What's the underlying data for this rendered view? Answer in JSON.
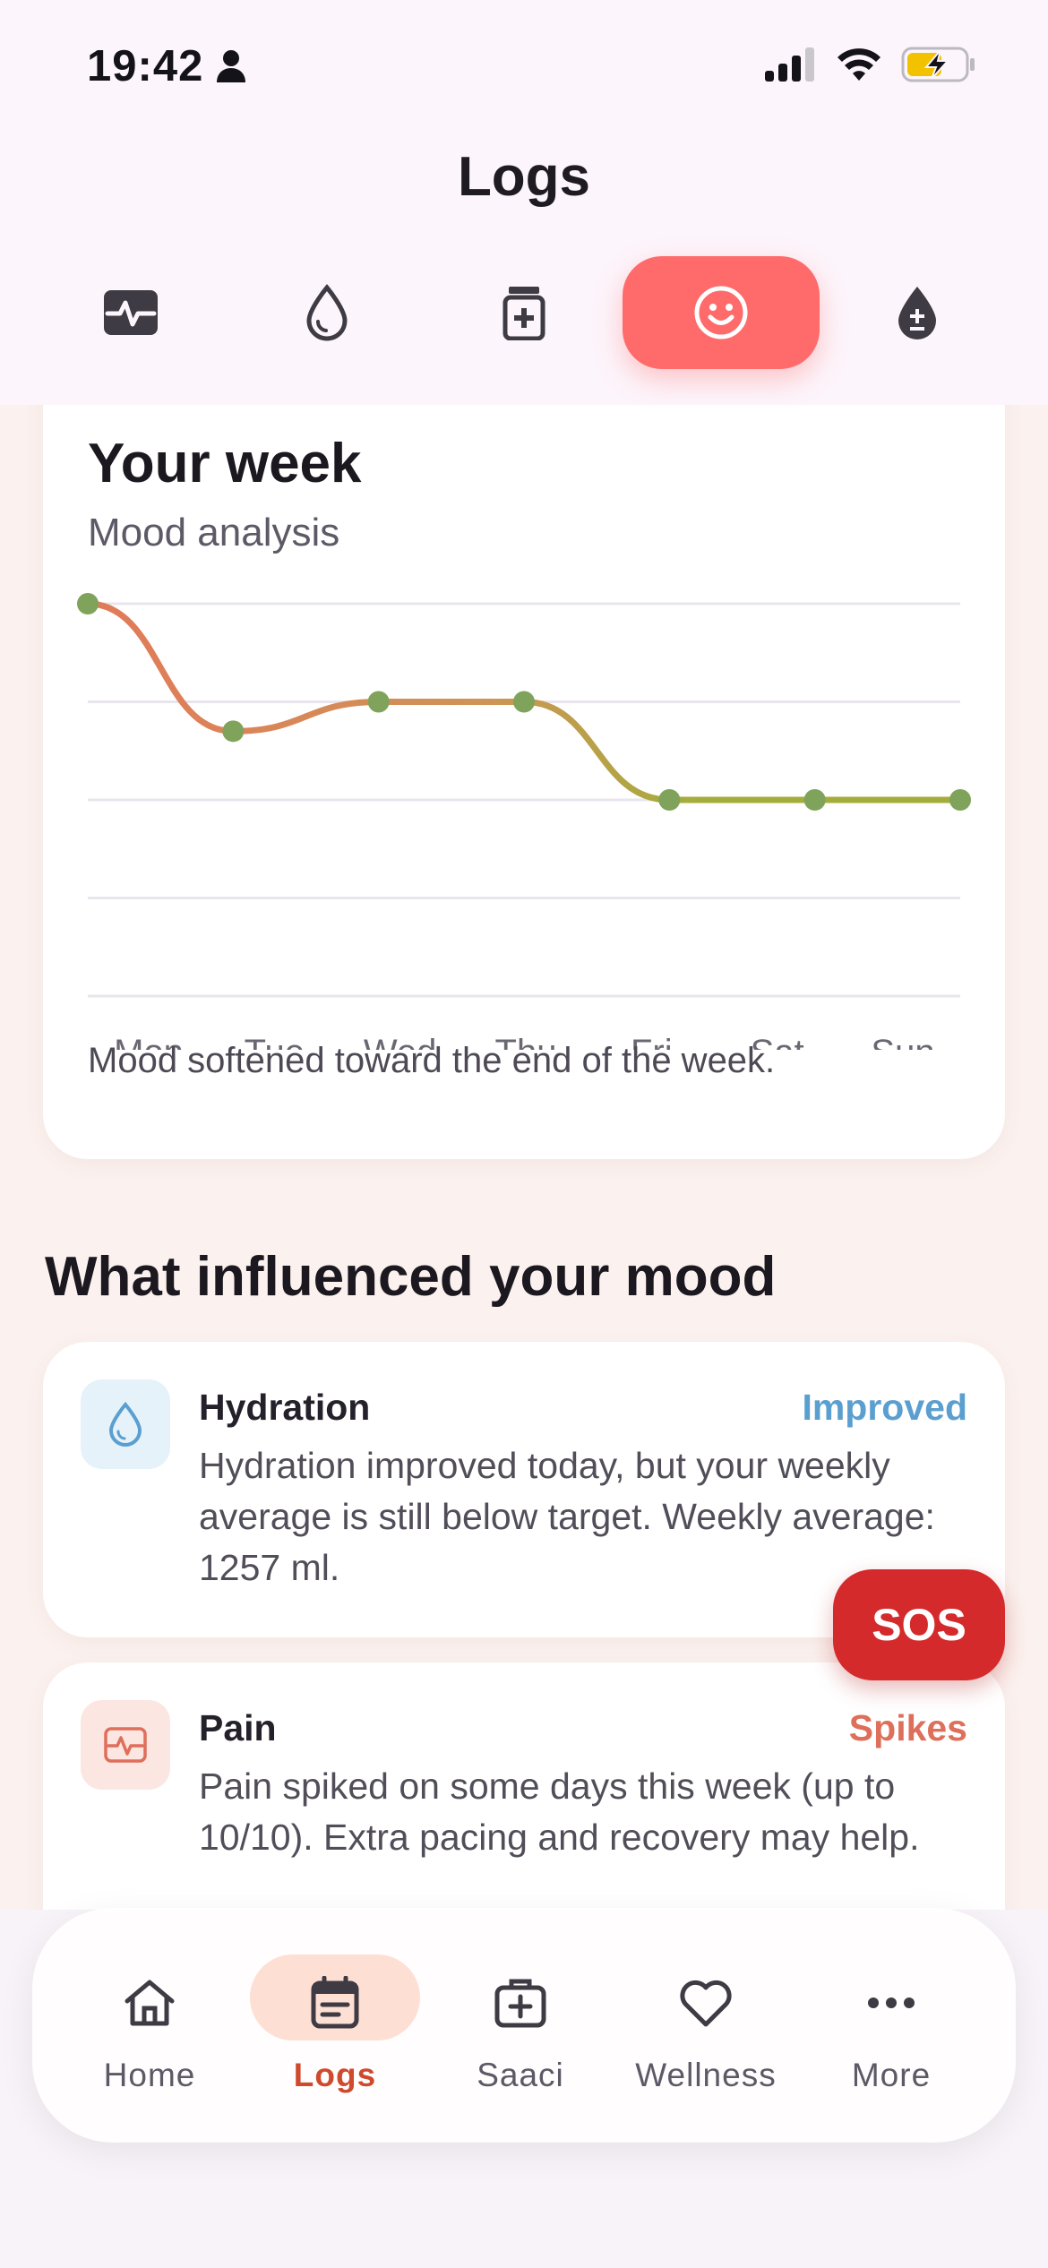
{
  "status_bar": {
    "time": "19:42"
  },
  "header": {
    "title": "Logs"
  },
  "tabs": [
    {
      "name": "vitals",
      "icon": "pulse-icon",
      "active": false
    },
    {
      "name": "hydration",
      "icon": "drop-icon",
      "active": false
    },
    {
      "name": "medication",
      "icon": "medicine-box-icon",
      "active": false
    },
    {
      "name": "mood",
      "icon": "smiley-icon",
      "active": true
    },
    {
      "name": "blood",
      "icon": "blood-drop-icon",
      "active": false
    }
  ],
  "week_card": {
    "title": "Your week",
    "subtitle": "Mood analysis",
    "note": "Mood softened toward the end of the week."
  },
  "chart_data": {
    "type": "line",
    "categories": [
      "Mon",
      "Tue",
      "Wed",
      "Thu",
      "Fri",
      "Sat",
      "Sun"
    ],
    "values": [
      4,
      2.7,
      3,
      3,
      2,
      2,
      2
    ],
    "ylim": [
      0,
      4
    ],
    "grid": true,
    "colors": {
      "high": "#e17a5a",
      "mid": "#cf9456",
      "low": "#a4ad3c",
      "point": "#7fa35a",
      "grid": "#e9e5ec"
    }
  },
  "influences": {
    "title": "What influenced your mood",
    "items": [
      {
        "name": "Hydration",
        "status": "Improved",
        "status_color": "#5a9fd0",
        "icon": "drop-icon",
        "text": "Hydration improved today, but your weekly average is still below target. Weekly average: 1257 ml."
      },
      {
        "name": "Pain",
        "status": "Spikes",
        "status_color": "#de6f5b",
        "icon": "pulse-icon",
        "text": "Pain spiked on some days this week (up to 10/10). Extra pacing and recovery may help."
      }
    ]
  },
  "sos": {
    "label": "SOS"
  },
  "nav": {
    "items": [
      {
        "label": "Home",
        "icon": "home-icon",
        "active": false
      },
      {
        "label": "Logs",
        "icon": "calendar-icon",
        "active": true
      },
      {
        "label": "Saaci",
        "icon": "medical-kit-icon",
        "active": false
      },
      {
        "label": "Wellness",
        "icon": "heart-icon",
        "active": false
      },
      {
        "label": "More",
        "icon": "more-icon",
        "active": false
      }
    ]
  }
}
